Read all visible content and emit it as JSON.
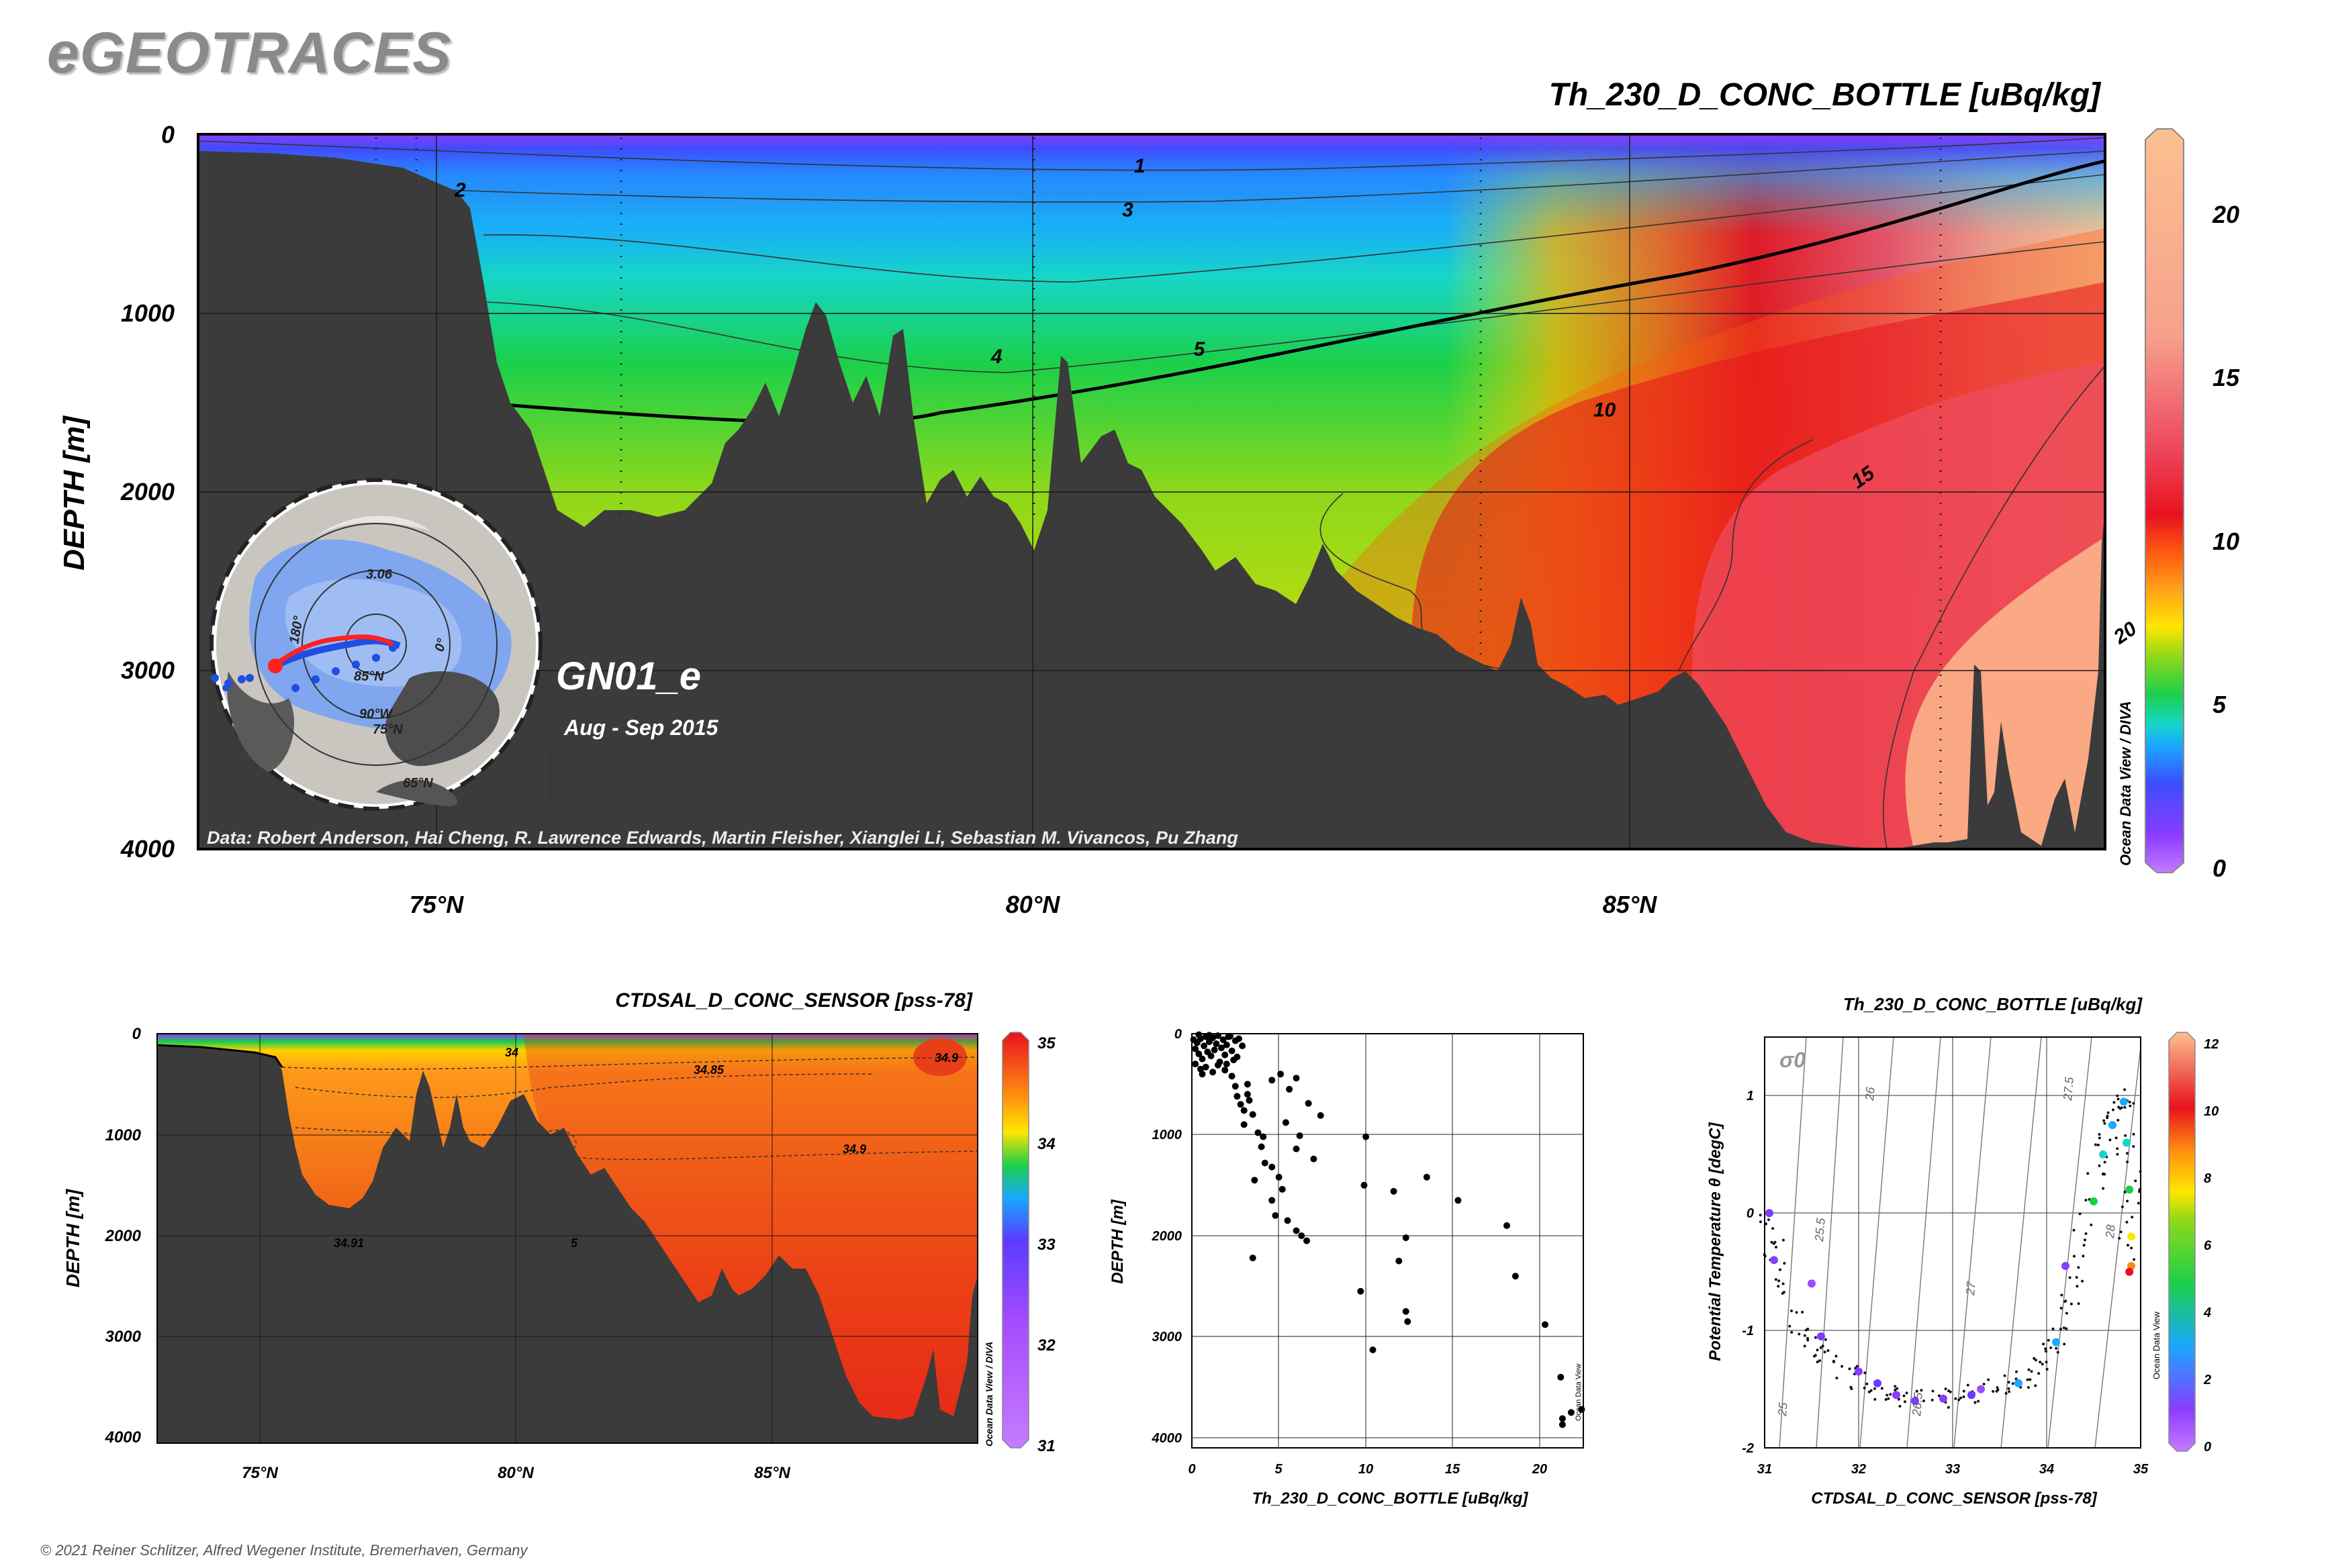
{
  "brand": "eGEOTRACES",
  "copyright": "© 2021 Reiner Schlitzer, Alfred Wegener Institute, Bremerhaven, Germany",
  "colors": {
    "seafloor": "#3b3b3b",
    "scale": [
      "#c57bff",
      "#8a3cff",
      "#3c4dff",
      "#1aa7ff",
      "#16d6c8",
      "#1bd04a",
      "#8ed81a",
      "#ffe600",
      "#ffa31a",
      "#ff5a10",
      "#e8121e",
      "#ee4d62",
      "#f6a08c",
      "#fcc090"
    ]
  },
  "chart_data": [
    {
      "id": "main-section",
      "type": "heatmap",
      "title": "Th_230_D_CONC_BOTTLE [uBq/kg]",
      "ylabel": "DEPTH [m]",
      "xlabel": "",
      "xlim": [
        73,
        89
      ],
      "ylim": [
        4000,
        0
      ],
      "xticks": [
        {
          "value": 75,
          "label": "75°N"
        },
        {
          "value": 80,
          "label": "80°N"
        },
        {
          "value": 85,
          "label": "85°N"
        }
      ],
      "yticks": [
        "0",
        "1000",
        "2000",
        "3000",
        "4000"
      ],
      "colorbar": {
        "min": 0,
        "max": 22,
        "ticks": [
          "0",
          "5",
          "10",
          "15",
          "20"
        ],
        "label": "Ocean Data View / DIVA"
      },
      "contour_labels": [
        {
          "value": "1",
          "lat": 80.9,
          "depth": 215
        },
        {
          "value": "2",
          "lat": 75.2,
          "depth": 350
        },
        {
          "value": "3",
          "lat": 80.8,
          "depth": 460
        },
        {
          "value": "4",
          "lat": 79.7,
          "depth": 1280
        },
        {
          "value": "5",
          "lat": 81.4,
          "depth": 1240
        },
        {
          "value": "10",
          "lat": 84.8,
          "depth": 1580
        },
        {
          "value": "15",
          "lat": 87.0,
          "depth": 1950
        },
        {
          "value": "20",
          "lat": 89.2,
          "depth": 2820
        }
      ],
      "station_label": "GN01_e",
      "date_label": "Aug - Sep 2015",
      "data_credit": "Data: Robert Anderson, Hai Cheng, R. Lawrence Edwards, Martin Fleisher, Xianglei Li, Sebastian M. Vivancos, Pu Zhang",
      "inset_map": {
        "labels": [
          "3.06",
          "180°",
          "85°N",
          "0°",
          "90°W",
          "75°N",
          "65°N"
        ],
        "watermark": "Ocean Data View"
      }
    },
    {
      "id": "salinity-section",
      "type": "heatmap",
      "title": "CTDSAL_D_CONC_SENSOR [pss-78]",
      "ylabel": "DEPTH [m]",
      "xlim": [
        73,
        89
      ],
      "ylim": [
        4000,
        0
      ],
      "xticks": [
        {
          "value": 75,
          "label": "75°N"
        },
        {
          "value": 80,
          "label": "80°N"
        },
        {
          "value": 85,
          "label": "85°N"
        }
      ],
      "yticks": [
        "0",
        "1000",
        "2000",
        "3000",
        "4000"
      ],
      "colorbar": {
        "min": 31,
        "max": 35,
        "ticks": [
          "31",
          "32",
          "33",
          "34",
          "35"
        ],
        "label": "Ocean Data View / DIVA"
      },
      "contour_labels": [
        "34",
        "34.85",
        "34.9",
        "34.9",
        "34.91",
        "5"
      ]
    },
    {
      "id": "profile-scatter",
      "type": "scatter",
      "xlabel": "Th_230_D_CONC_BOTTLE [uBq/kg]",
      "ylabel": "DEPTH [m]",
      "xlim": [
        0,
        22.5
      ],
      "ylim": [
        4100,
        0
      ],
      "xticks": [
        "0",
        "5",
        "10",
        "15",
        "20"
      ],
      "yticks": [
        "0",
        "1000",
        "2000",
        "3000",
        "4000"
      ],
      "watermark": "Ocean Data View",
      "points": [
        [
          0.1,
          60
        ],
        [
          0.2,
          150
        ],
        [
          0.3,
          90
        ],
        [
          0.4,
          200
        ],
        [
          0.5,
          50
        ],
        [
          0.6,
          250
        ],
        [
          0.7,
          120
        ],
        [
          0.8,
          30
        ],
        [
          0.9,
          180
        ],
        [
          1.0,
          80
        ],
        [
          1.1,
          220
        ],
        [
          1.2,
          40
        ],
        [
          1.3,
          160
        ],
        [
          1.4,
          100
        ],
        [
          1.5,
          20
        ],
        [
          1.6,
          280
        ],
        [
          1.7,
          140
        ],
        [
          1.8,
          60
        ],
        [
          1.9,
          210
        ],
        [
          2.0,
          110
        ],
        [
          2.1,
          30
        ],
        [
          2.3,
          170
        ],
        [
          2.5,
          70
        ],
        [
          0.2,
          300
        ],
        [
          0.5,
          350
        ],
        [
          0.8,
          330
        ],
        [
          1.2,
          380
        ],
        [
          2.7,
          50
        ],
        [
          2.9,
          120
        ],
        [
          0.4,
          10
        ],
        [
          1.0,
          15
        ],
        [
          2.2,
          25
        ],
        [
          1.5,
          310
        ],
        [
          0.6,
          400
        ],
        [
          1.9,
          360
        ],
        [
          2.4,
          260
        ],
        [
          2.6,
          230
        ],
        [
          2.0,
          300
        ],
        [
          2.3,
          420
        ],
        [
          2.5,
          520
        ],
        [
          2.6,
          620
        ],
        [
          2.8,
          700
        ],
        [
          3.0,
          760
        ],
        [
          3.2,
          500
        ],
        [
          3.3,
          660
        ],
        [
          3.5,
          800
        ],
        [
          3.0,
          900
        ],
        [
          3.2,
          600
        ],
        [
          3.8,
          980
        ],
        [
          4.0,
          1120
        ],
        [
          4.2,
          1280
        ],
        [
          3.6,
          1450
        ],
        [
          4.6,
          1650
        ],
        [
          4.8,
          1800
        ],
        [
          5.0,
          1420
        ],
        [
          5.2,
          1540
        ],
        [
          5.5,
          1850
        ],
        [
          6.0,
          1950
        ],
        [
          6.6,
          2050
        ],
        [
          6.3,
          2000
        ],
        [
          3.5,
          2220
        ],
        [
          4.1,
          1020
        ],
        [
          4.6,
          1320
        ],
        [
          5.4,
          880
        ],
        [
          6.0,
          1140
        ],
        [
          6.2,
          1010
        ],
        [
          7.0,
          1240
        ],
        [
          7.4,
          810
        ],
        [
          6.7,
          690
        ],
        [
          4.6,
          460
        ],
        [
          5.1,
          400
        ],
        [
          5.6,
          550
        ],
        [
          6.0,
          440
        ],
        [
          10.0,
          1020
        ],
        [
          9.9,
          1500
        ],
        [
          11.6,
          1560
        ],
        [
          12.3,
          2020
        ],
        [
          11.9,
          2250
        ],
        [
          9.7,
          2550
        ],
        [
          10.4,
          3130
        ],
        [
          12.3,
          2750
        ],
        [
          12.4,
          2850
        ],
        [
          13.5,
          1420
        ],
        [
          15.3,
          1650
        ],
        [
          18.1,
          1900
        ],
        [
          18.6,
          2400
        ],
        [
          20.3,
          2880
        ],
        [
          21.2,
          3400
        ],
        [
          21.8,
          3750
        ],
        [
          21.3,
          3810
        ],
        [
          21.3,
          3870
        ],
        [
          22.4,
          3720
        ]
      ]
    },
    {
      "id": "ts-diagram",
      "type": "scatter",
      "title": "Th_230_D_CONC_BOTTLE [uBq/kg]",
      "xlabel": "CTDSAL_D_CONC_SENSOR [pss-78]",
      "ylabel": "Potential Temperature θ [degC]",
      "xlim": [
        31,
        35
      ],
      "ylim": [
        -2,
        1.5
      ],
      "xticks": [
        "31",
        "32",
        "33",
        "34",
        "35"
      ],
      "yticks": [
        "-2",
        "-1",
        "0",
        "1"
      ],
      "density_label": "σ0",
      "isopycnals": [
        "25",
        "25.5",
        "26",
        "26.5",
        "27",
        "27.5",
        "28"
      ],
      "colorbar": {
        "min": 0,
        "max": 12,
        "ticks": [
          "0",
          "2",
          "4",
          "6",
          "8",
          "10",
          "12"
        ],
        "label": "Ocean Data View"
      }
    }
  ]
}
